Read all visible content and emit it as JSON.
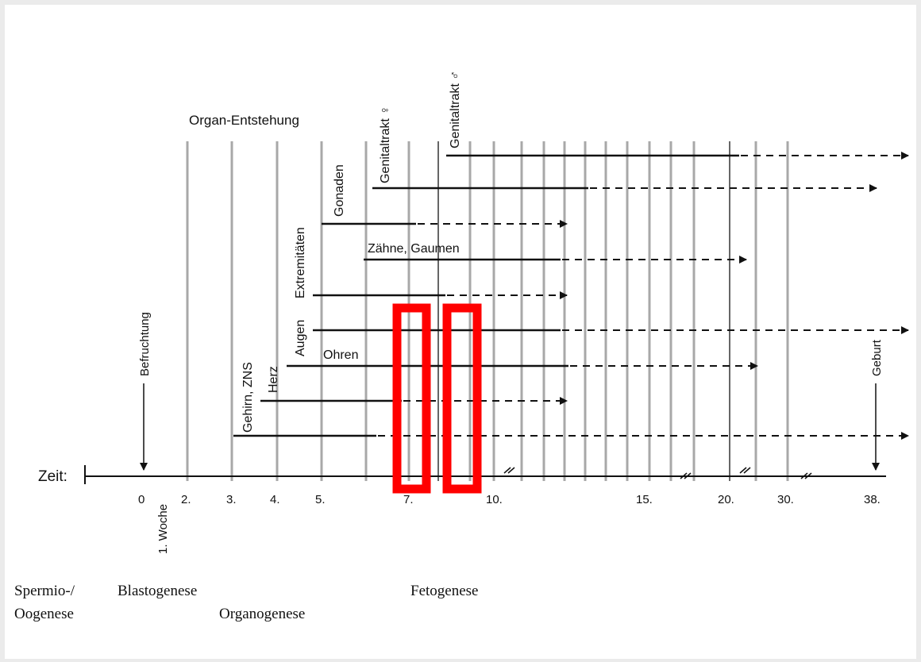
{
  "diagram": {
    "title": "Organ-Entstehung",
    "axis": {
      "label": "Zeit:",
      "ticks": [
        "0",
        "2.",
        "3.",
        "4.",
        "5.",
        "7.",
        "10.",
        "15.",
        "20.",
        "30.",
        "38."
      ],
      "week_label": "1. Woche"
    },
    "events": {
      "fertilization": "Befruchtung",
      "birth": "Geburt"
    },
    "organs": [
      {
        "label": "Gehirn, ZNS",
        "dashed_to": "38."
      },
      {
        "label": "Herz"
      },
      {
        "label": "Ohren"
      },
      {
        "label": "Augen",
        "dashed_to": "38."
      },
      {
        "label": "Extremitäten"
      },
      {
        "label": "Zähne, Gaumen"
      },
      {
        "label": "Gonaden"
      },
      {
        "label": "Genitaltrakt ♀"
      },
      {
        "label": "Genitaltrakt ♂",
        "dashed_to": "38."
      }
    ],
    "phases": [
      "Spermio-/",
      "Oogenese",
      "Blastogenese",
      "Organogenese",
      "Fetogenese"
    ],
    "highlight_color": "#ff0000"
  }
}
